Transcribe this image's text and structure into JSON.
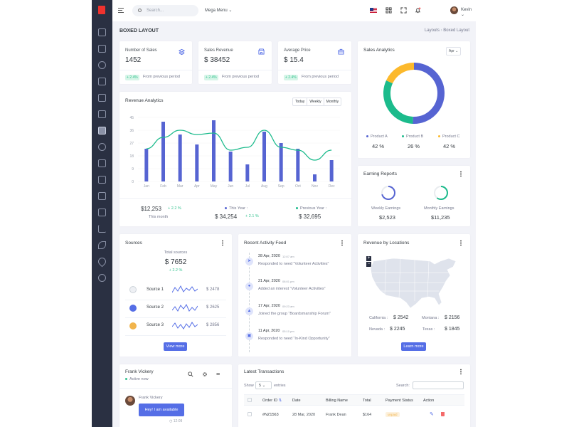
{
  "header": {
    "search_placeholder": "Search...",
    "mega_menu": "Mega Menu",
    "user_name": "Kevin"
  },
  "page": {
    "title": "BOXED LAYOUT",
    "breadcrumb": [
      "Layouts",
      "Boxed Layout"
    ]
  },
  "kpis": [
    {
      "label": "Number of Sales",
      "value": "1452",
      "change": "+ 2.4%",
      "note": "From previous period",
      "icon": "layers-icon"
    },
    {
      "label": "Sales Revenue",
      "value": "$ 38452",
      "change": "+ 2.4%",
      "note": "From previous period",
      "icon": "store-icon"
    },
    {
      "label": "Average Price",
      "value": "$ 15.4",
      "change": "+ 2.4%",
      "note": "From previous period",
      "icon": "briefcase-icon"
    }
  ],
  "sales_analytics": {
    "title": "Sales Analytics",
    "filter": "Apr",
    "items": [
      {
        "name": "Product A",
        "value": "42 %",
        "color": "#5664d2"
      },
      {
        "name": "Product B",
        "value": "26 %",
        "color": "#1cbb8c"
      },
      {
        "name": "Product C",
        "value": "42 %",
        "color": "#fcb92c"
      }
    ]
  },
  "revenue": {
    "title": "Revenue Analytics",
    "tabs": [
      "Today",
      "Weekly",
      "Monthly"
    ],
    "summary": [
      {
        "value": "$12,253",
        "change": "+ 2.2 %",
        "label": "This month"
      },
      {
        "label": "This Year :",
        "value": "$ 34,254",
        "change": "+ 2.1 %",
        "color": "#5664d2"
      },
      {
        "label": "Previous Year :",
        "value": "$ 32,695",
        "color": "#1cbb8c"
      }
    ]
  },
  "chart_data": {
    "type": "bar",
    "categories": [
      "Jan",
      "Feb",
      "Mar",
      "Apr",
      "May",
      "Jun",
      "Jul",
      "Aug",
      "Sep",
      "Oct",
      "Nov",
      "Dec"
    ],
    "y_ticks": [
      "0",
      "9",
      "18",
      "27",
      "36",
      "45"
    ],
    "ylim": [
      0,
      45
    ],
    "series": [
      {
        "values": [
          23,
          42,
          33,
          26,
          43,
          21,
          12,
          35,
          27,
          23,
          5,
          15
        ],
        "color": "#5664d2"
      },
      {
        "values": [
          23,
          31,
          36,
          33,
          34,
          22,
          24,
          36,
          24,
          22,
          15,
          22
        ],
        "color": "#1cbb8c"
      }
    ]
  },
  "earning": {
    "title": "Earning Reports",
    "items": [
      {
        "label": "Weekly Earnings",
        "value": "$2,523"
      },
      {
        "label": "Monthly Earnings",
        "value": "$11,235"
      }
    ]
  },
  "sources": {
    "title": "Sources",
    "total_label": "Total sources",
    "total": "$ 7652",
    "change": "+ 2.2 %",
    "items": [
      {
        "name": "Source 1",
        "value": "$ 2478",
        "color": "#ced4da"
      },
      {
        "name": "Source 2",
        "value": "$ 2625",
        "color": "#556ee6"
      },
      {
        "name": "Source 3",
        "value": "$ 2856",
        "color": "#f1b44c"
      }
    ],
    "button": "View more"
  },
  "activity": {
    "title": "Recent Activity Feed",
    "items": [
      {
        "date": "28 Apr, 2020",
        "time": "12:07 am",
        "text": "Responded to need “Volunteer Activities”"
      },
      {
        "date": "21 Apr, 2020",
        "time": "08:01 pm",
        "text": "Added an interest “Volunteer Activities”"
      },
      {
        "date": "17 Apr, 2020",
        "time": "09:23 am",
        "text": "Joined the group “Boardsmanship Forum”"
      },
      {
        "date": "11 Apr, 2020",
        "time": "05:10 pm",
        "text": "Responded to need “In-Kind Opportunity”"
      }
    ]
  },
  "locations": {
    "title": "Revenue by Locations",
    "items": [
      {
        "name": "California :",
        "value": "$ 2542"
      },
      {
        "name": "Montana :",
        "value": "$ 2156"
      },
      {
        "name": "Nevada :",
        "value": "$ 2245"
      },
      {
        "name": "Texas :",
        "value": "$ 1845"
      }
    ],
    "button": "Learn more",
    "zoom_in": "+",
    "zoom_out": "−"
  },
  "chat": {
    "name": "Frank Vickery",
    "status": "Active now",
    "msg_name": "Frank Vickery",
    "message": "Hey! I am available",
    "time": "12:09"
  },
  "transactions": {
    "title": "Latest Transactions",
    "show_label": "Show",
    "show_value": "5",
    "entries_label": "entries",
    "search_label": "Search:",
    "columns": [
      "Order ID",
      "Date",
      "Billing Name",
      "Total",
      "Payment Status",
      "Action"
    ],
    "rows": [
      {
        "id": "#NZ1563",
        "date": "28 Mar, 2020",
        "name": "Frank Dean",
        "total": "$164",
        "status": "unpaid"
      }
    ]
  }
}
